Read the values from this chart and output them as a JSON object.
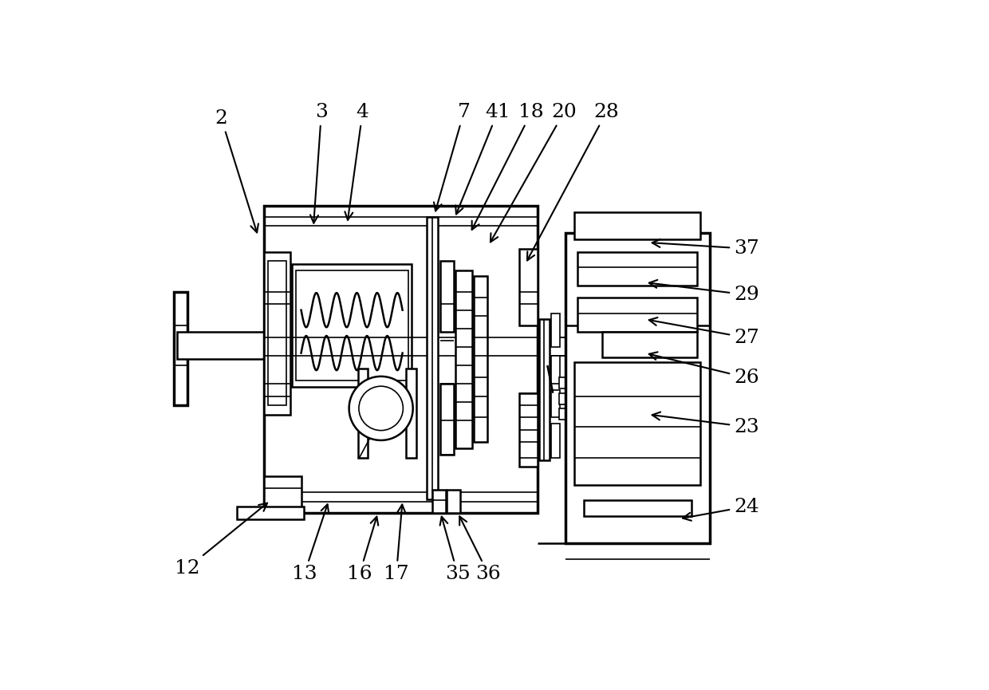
{
  "bg_color": "#ffffff",
  "line_color": "#000000",
  "fig_width": 12.4,
  "fig_height": 8.65,
  "dpi": 100
}
